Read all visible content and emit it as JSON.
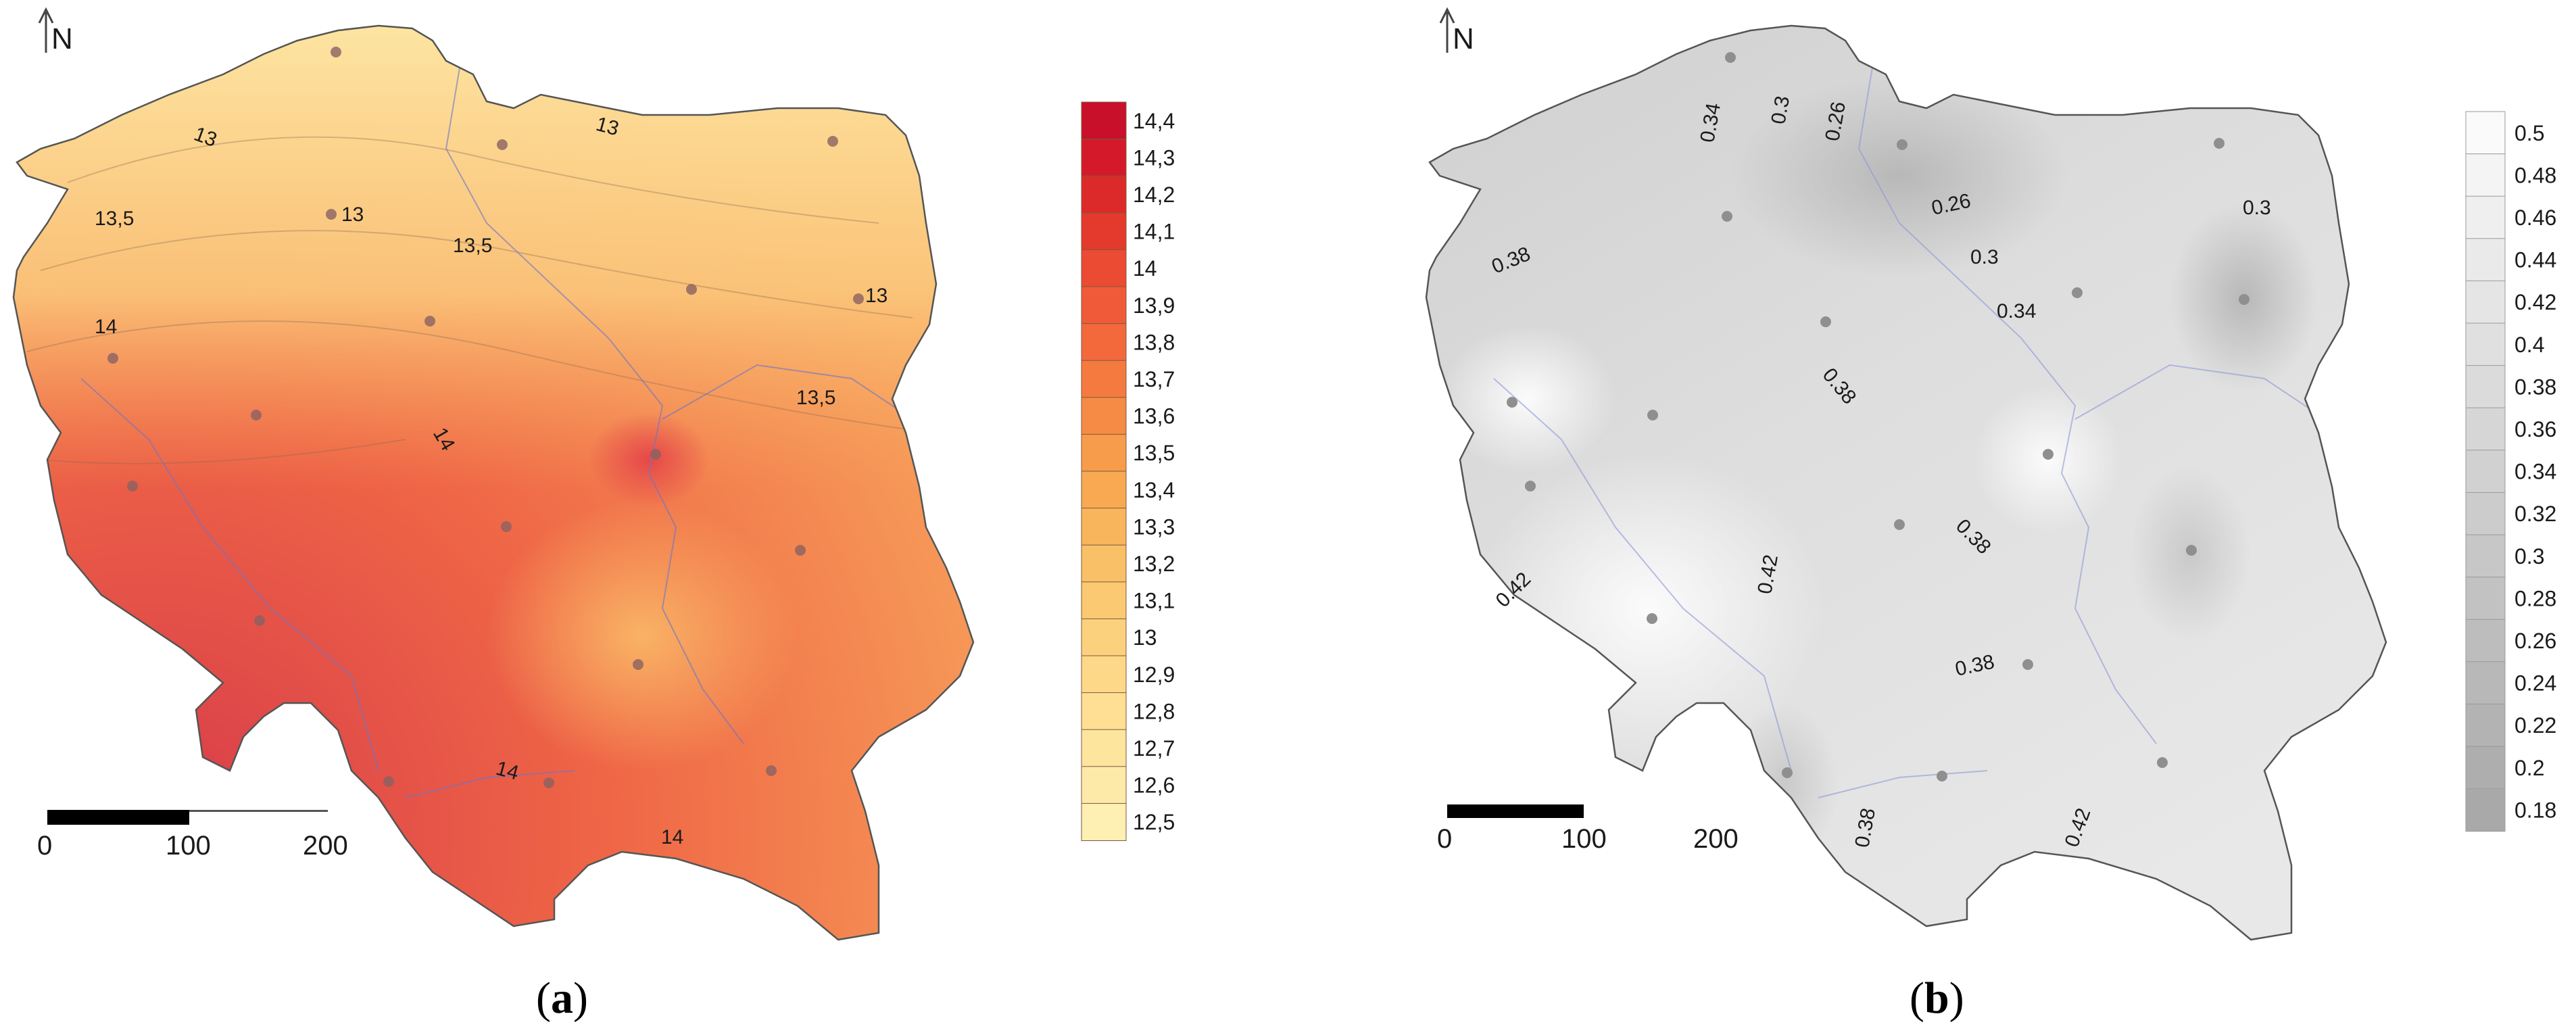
{
  "panel_a": {
    "north_label": "N",
    "caption_open": "(",
    "caption_letter": "a",
    "caption_close": ")",
    "scalebar": {
      "ticks": [
        "0",
        "100",
        "200"
      ]
    },
    "legend": {
      "labels": [
        "14,4",
        "14,3",
        "14,2",
        "14,1",
        "14",
        "13,9",
        "13,8",
        "13,7",
        "13,6",
        "13,5",
        "13,4",
        "13,3",
        "13,2",
        "13,1",
        "13",
        "12,9",
        "12,8",
        "12,7",
        "12,6",
        "12,5"
      ],
      "colors": [
        "#c8102a",
        "#d41a2a",
        "#dc2a2a",
        "#e4392d",
        "#eb4a33",
        "#f05a38",
        "#f3693c",
        "#f57a40",
        "#f68b45",
        "#f79c4b",
        "#f8a952",
        "#f9b55c",
        "#fac067",
        "#fbc972",
        "#fcd17d",
        "#fdd888",
        "#fedf93",
        "#fee59e",
        "#feeaa8",
        "#feefb2"
      ]
    },
    "contour_labels": [
      "13",
      "13",
      "13",
      "13,5",
      "13,5",
      "13",
      "14",
      "14",
      "13,5",
      "14",
      "14"
    ]
  },
  "panel_b": {
    "north_label": "N",
    "caption_open": "(",
    "caption_letter": "b",
    "caption_close": ")",
    "scalebar": {
      "ticks": [
        "0",
        "100",
        "200"
      ]
    },
    "legend": {
      "labels": [
        "0.5",
        "0.48",
        "0.46",
        "0.44",
        "0.42",
        "0.4",
        "0.38",
        "0.36",
        "0.34",
        "0.32",
        "0.3",
        "0.28",
        "0.26",
        "0.24",
        "0.22",
        "0.2",
        "0.18"
      ],
      "colors": [
        "#fafafa",
        "#f4f4f4",
        "#efefef",
        "#eaeaea",
        "#e5e5e5",
        "#e0e0e0",
        "#dbdbdb",
        "#d6d6d6",
        "#d1d1d1",
        "#cccccc",
        "#c7c7c7",
        "#c2c2c2",
        "#bdbdbd",
        "#b8b8b8",
        "#b3b3b3",
        "#aeaeae",
        "#a9a9a9"
      ]
    },
    "contour_labels": [
      "0.34",
      "0.3",
      "0.26",
      "0.26",
      "0.3",
      "0.3",
      "0.38",
      "0.34",
      "0.38",
      "0.38",
      "0.42",
      "0.42",
      "0.38",
      "0.38",
      "0.42"
    ]
  }
}
